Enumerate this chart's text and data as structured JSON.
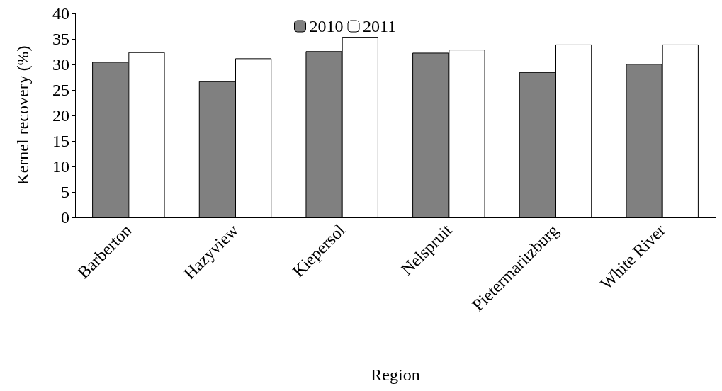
{
  "chart_data": {
    "type": "bar",
    "xlabel": "Region",
    "ylabel": "Kernel recovery (%)",
    "categories": [
      "Barberton",
      "Hazyview",
      "Kiepersol",
      "Nelspruit",
      "Pietermaritzburg",
      "White River"
    ],
    "series": [
      {
        "name": "2010",
        "color": "#808080",
        "values": [
          30.5,
          26.7,
          32.6,
          32.3,
          28.5,
          30.1
        ]
      },
      {
        "name": "2011",
        "color": "#ffffff",
        "values": [
          32.4,
          31.2,
          35.4,
          32.9,
          33.9,
          33.9
        ]
      }
    ],
    "ylim": [
      0,
      40
    ],
    "yticks": [
      0,
      5,
      10,
      15,
      20,
      25,
      30,
      35,
      40
    ],
    "grid": false,
    "legend": "top"
  }
}
